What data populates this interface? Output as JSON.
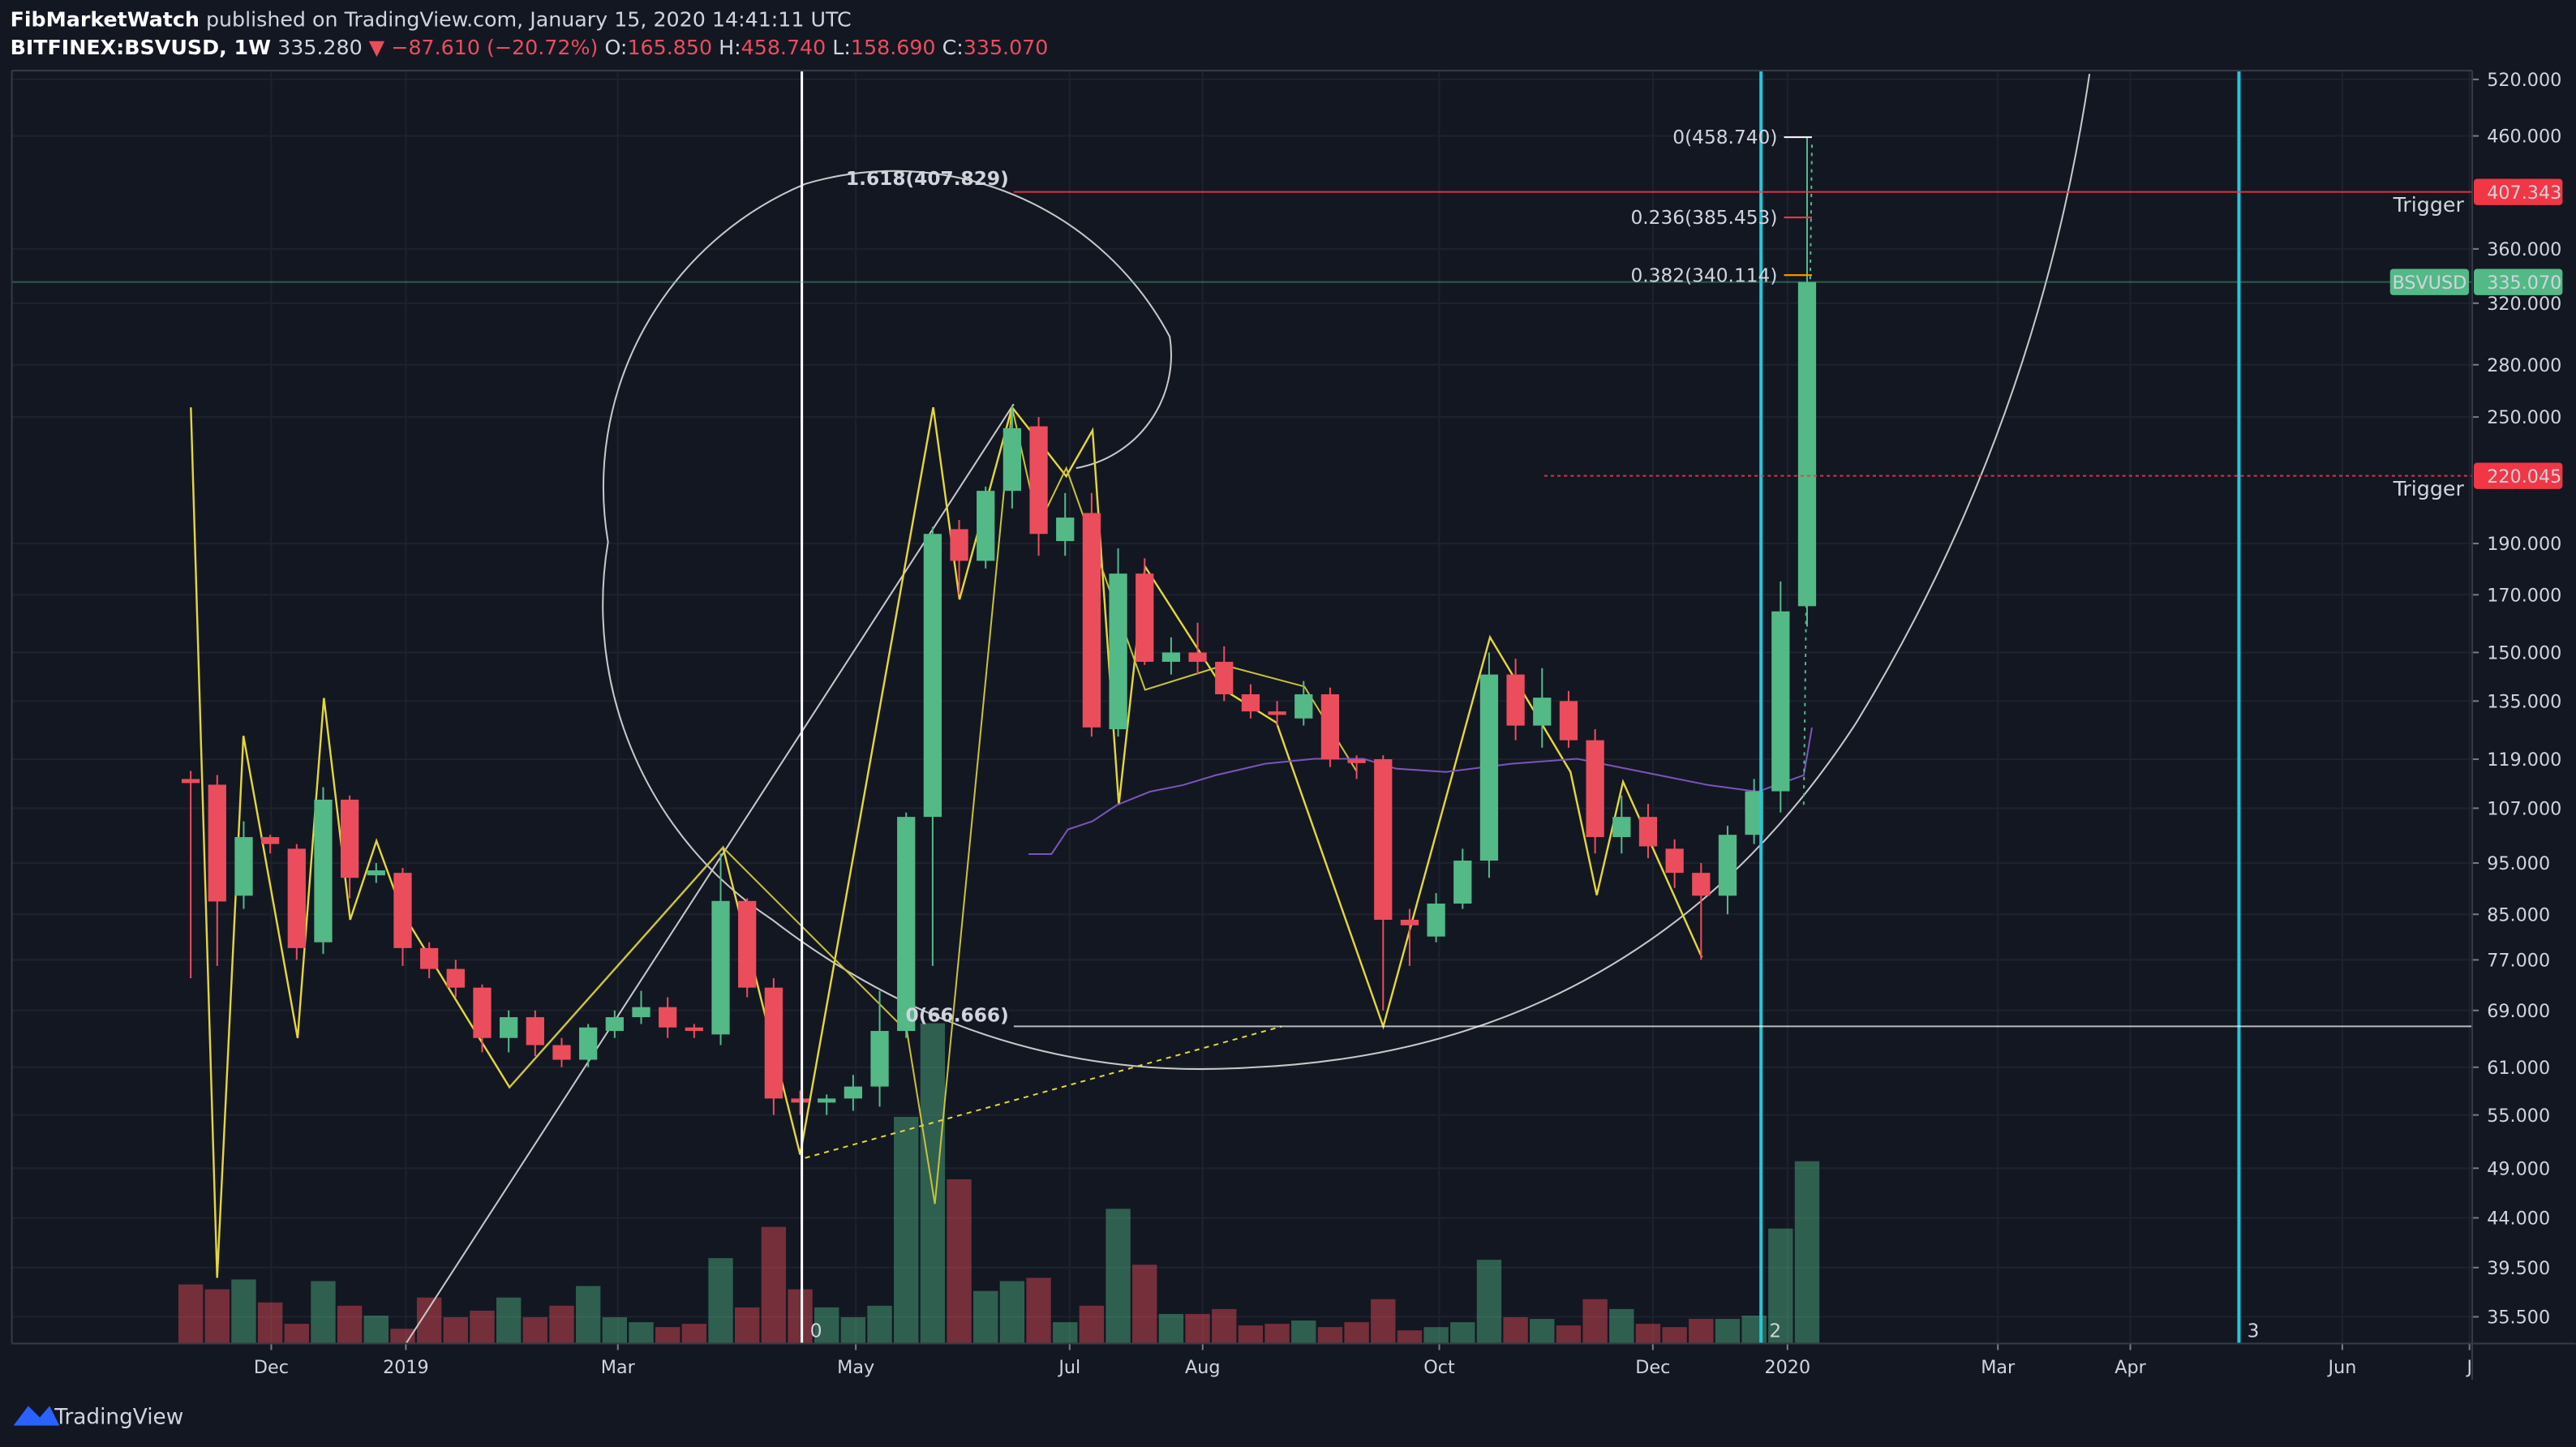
{
  "header": {
    "author": "FibMarketWatch",
    "published": "published on TradingView.com, January 15, 2020 14:41:11 UTC",
    "symbol": "BITFINEX:BSVUSD, 1W",
    "last": "335.280",
    "change": "▼ −87.610 (−20.72%)",
    "ohlc": [
      {
        "key": "O:",
        "value": "165.850"
      },
      {
        "key": "H:",
        "value": "458.740"
      },
      {
        "key": "L:",
        "value": "158.690"
      },
      {
        "key": "C:",
        "value": "335.070"
      }
    ]
  },
  "chart_data": {
    "type": "candlestick",
    "log_scale": true,
    "grid": true,
    "up_color": "#53b987",
    "down_color": "#eb4d5c",
    "open": [
      114,
      112.6,
      88.5,
      100.5,
      98,
      80,
      109,
      92.5,
      93,
      79,
      75.5,
      72.5,
      65,
      68,
      64,
      62,
      66,
      68,
      69.5,
      66.5,
      65.5,
      87.5,
      72.5,
      57,
      56.5,
      57,
      58.5,
      66,
      105,
      196,
      183,
      213,
      245,
      191,
      203,
      127,
      178,
      147,
      150,
      147,
      137,
      132,
      130,
      137,
      119,
      119,
      84,
      81,
      87,
      95.5,
      143,
      128,
      135,
      124,
      100.5,
      105,
      98,
      93,
      88.5,
      101,
      111,
      165.85
    ],
    "high": [
      116,
      115,
      104,
      101,
      99,
      112,
      110,
      95,
      94,
      80,
      77,
      73,
      69,
      69,
      65,
      67,
      69,
      72,
      71,
      67,
      97,
      88,
      74,
      58,
      57.5,
      60,
      72,
      106,
      197,
      200,
      215,
      256,
      250,
      212,
      212,
      188,
      184,
      155,
      160,
      152,
      140,
      135,
      141,
      139,
      120,
      120,
      86,
      89,
      98,
      150,
      148,
      145,
      138,
      127,
      110,
      108,
      100,
      95,
      103,
      114,
      175,
      458.74
    ],
    "low": [
      74,
      76,
      86,
      97,
      77,
      78,
      88,
      91,
      76,
      74,
      71,
      63,
      63,
      62.5,
      61,
      61,
      65,
      67,
      65,
      65,
      64,
      71,
      55,
      55,
      55,
      55.5,
      56,
      65,
      76,
      170,
      180,
      205,
      185,
      185,
      125,
      125,
      146,
      143,
      143,
      135,
      130,
      128,
      128,
      117,
      114,
      69,
      76,
      80,
      86,
      92,
      124,
      122,
      122,
      97,
      97,
      96,
      90,
      77,
      85,
      99,
      106,
      158.69
    ],
    "close": [
      113,
      87.4,
      100.5,
      99,
      79,
      109,
      92,
      93.5,
      79,
      75.5,
      72.5,
      65,
      68,
      64,
      62,
      66.5,
      68,
      69.5,
      66.5,
      66,
      87.5,
      72.5,
      57,
      56.5,
      57,
      58.5,
      66,
      105,
      194,
      183,
      213,
      244,
      194,
      201,
      127.5,
      178,
      147,
      150,
      147,
      137,
      132,
      131,
      137,
      119,
      118,
      84,
      83,
      87,
      95.5,
      143,
      128,
      136,
      124,
      100.5,
      105,
      98.5,
      93,
      88.5,
      101,
      111,
      164,
      335.07
    ],
    "volume": [
      36,
      33,
      39,
      25,
      12,
      38,
      23,
      17,
      9,
      28,
      16,
      20,
      28,
      16,
      23,
      35,
      16,
      13,
      10,
      12,
      52,
      22,
      71,
      33,
      22,
      16,
      23,
      138,
      195,
      100,
      32,
      38,
      40,
      13,
      23,
      82,
      48,
      18,
      18,
      21,
      11,
      12,
      14,
      10,
      13,
      27,
      8,
      10,
      13,
      51,
      16,
      15,
      11,
      27,
      21,
      12,
      10,
      15,
      15,
      17,
      70,
      111
    ],
    "ylim": [
      33.5,
      530
    ],
    "yticks": [
      {
        "value": 35.5,
        "label": "35.500"
      },
      {
        "value": 39.5,
        "label": "39.500"
      },
      {
        "value": 44,
        "label": "44.000"
      },
      {
        "value": 49,
        "label": "49.000"
      },
      {
        "value": 55,
        "label": "55.000"
      },
      {
        "value": 61,
        "label": "61.000"
      },
      {
        "value": 69,
        "label": "69.000"
      },
      {
        "value": 77,
        "label": "77.000"
      },
      {
        "value": 85,
        "label": "85.000"
      },
      {
        "value": 95,
        "label": "95.000"
      },
      {
        "value": 107,
        "label": "107.000"
      },
      {
        "value": 119,
        "label": "119.000"
      },
      {
        "value": 135,
        "label": "135.000"
      },
      {
        "value": 150,
        "label": "150.000"
      },
      {
        "value": 170,
        "label": "170.000"
      },
      {
        "value": 190,
        "label": "190.000"
      },
      {
        "value": 250,
        "label": "250.000"
      },
      {
        "value": 280,
        "label": "280.000"
      },
      {
        "value": 320,
        "label": "320.000"
      },
      {
        "value": 360,
        "label": "360.000"
      },
      {
        "value": 460,
        "label": "460.000"
      },
      {
        "value": 520,
        "label": "520.000"
      }
    ],
    "xlim": [
      -6.75,
      86.1
    ],
    "xticks": [
      {
        "value": 3.04,
        "label": "Dec"
      },
      {
        "value": 8.12,
        "label": "2019"
      },
      {
        "value": 16.12,
        "label": "Mar"
      },
      {
        "value": 25.1,
        "label": "May"
      },
      {
        "value": 33.17,
        "label": "Jul"
      },
      {
        "value": 38.19,
        "label": "Aug"
      },
      {
        "value": 47.12,
        "label": "Oct"
      },
      {
        "value": 55.18,
        "label": "Dec"
      },
      {
        "value": 60.26,
        "label": "2020"
      },
      {
        "value": 68.2,
        "label": "Mar"
      },
      {
        "value": 73.2,
        "label": "Apr"
      },
      {
        "value": 81.2,
        "label": "Jun"
      },
      {
        "value": 86.0,
        "label": "J"
      }
    ],
    "fib_levels": [
      {
        "label": "0(458.740)",
        "value": 458.74,
        "color": "#ffffff"
      },
      {
        "label": "0.236(385.453)",
        "value": 385.453,
        "color": "#f23645"
      },
      {
        "label": "0.382(340.114)",
        "value": 340.114,
        "color": "#ff9800"
      },
      {
        "label": "1.618(407.829)",
        "value": 407.829,
        "color": "#39e639"
      },
      {
        "label": "0(66.666)",
        "value": 66.666,
        "color": "#ffffff"
      }
    ],
    "price_lines": [
      {
        "label": "407.343",
        "value": 407.343,
        "color": "#f23645",
        "note": "Trigger"
      },
      {
        "label": "220.045",
        "value": 220.045,
        "color": "#f23645",
        "note": "Trigger"
      },
      {
        "label": "335.070",
        "value": 335.07,
        "color": "#53b987",
        "name": "BSVUSD"
      }
    ],
    "markers": [
      {
        "label": "0",
        "color": "#ffffff"
      },
      {
        "label": "2",
        "color": "#26c6da"
      },
      {
        "label": "3",
        "color": "#26c6da"
      }
    ]
  },
  "footer": {
    "brand": "TradingView"
  }
}
